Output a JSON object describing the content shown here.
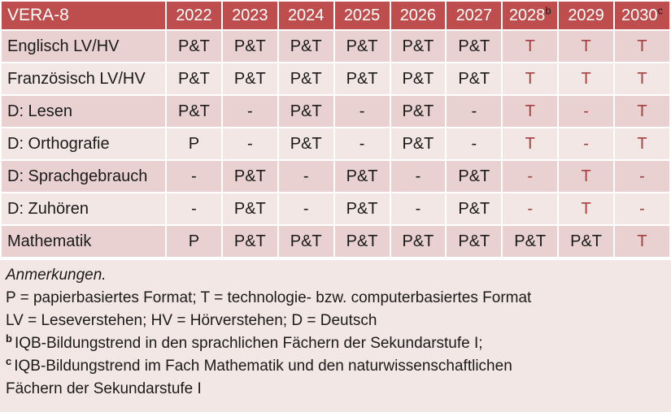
{
  "colors": {
    "header_bg": "#be4e4d",
    "header_text": "#ffffff",
    "row_dark_bg": "#e8d1d0",
    "row_light_bg": "#f3e7e5",
    "body_text": "#1a1a1a",
    "accent_text": "#a53e3c",
    "grid_gap": "#ffffff"
  },
  "table": {
    "corner_label": "VERA-8",
    "columns": [
      {
        "label": "2022"
      },
      {
        "label": "2023"
      },
      {
        "label": "2024"
      },
      {
        "label": "2025"
      },
      {
        "label": "2026"
      },
      {
        "label": "2027"
      },
      {
        "label": "2028",
        "sup": "b"
      },
      {
        "label": "2029"
      },
      {
        "label": "2030",
        "sup": "c"
      }
    ],
    "rows": [
      {
        "label": "Englisch LV/HV",
        "cells": [
          {
            "text": "P&T"
          },
          {
            "text": "P&T"
          },
          {
            "text": "P&T"
          },
          {
            "text": "P&T"
          },
          {
            "text": "P&T"
          },
          {
            "text": "P&T"
          },
          {
            "text": "T",
            "accent": true
          },
          {
            "text": "T",
            "accent": true
          },
          {
            "text": "T",
            "accent": true
          }
        ]
      },
      {
        "label": "Französisch LV/HV",
        "cells": [
          {
            "text": "P&T"
          },
          {
            "text": "P&T"
          },
          {
            "text": "P&T"
          },
          {
            "text": "P&T"
          },
          {
            "text": "P&T"
          },
          {
            "text": "P&T"
          },
          {
            "text": "T",
            "accent": true
          },
          {
            "text": "T",
            "accent": true
          },
          {
            "text": "T",
            "accent": true
          }
        ]
      },
      {
        "label": "D: Lesen",
        "cells": [
          {
            "text": "P&T"
          },
          {
            "text": "-"
          },
          {
            "text": "P&T"
          },
          {
            "text": "-"
          },
          {
            "text": "P&T"
          },
          {
            "text": "-"
          },
          {
            "text": "T",
            "accent": true
          },
          {
            "text": "-",
            "accent": true
          },
          {
            "text": "T",
            "accent": true
          }
        ]
      },
      {
        "label": "D: Orthografie",
        "cells": [
          {
            "text": "P"
          },
          {
            "text": "-"
          },
          {
            "text": "P&T"
          },
          {
            "text": "-"
          },
          {
            "text": "P&T"
          },
          {
            "text": "-"
          },
          {
            "text": "T",
            "accent": true
          },
          {
            "text": "-",
            "accent": true
          },
          {
            "text": "T",
            "accent": true
          }
        ]
      },
      {
        "label": "D: Sprachgebrauch",
        "cells": [
          {
            "text": "-"
          },
          {
            "text": "P&T"
          },
          {
            "text": "-"
          },
          {
            "text": "P&T"
          },
          {
            "text": "-"
          },
          {
            "text": "P&T"
          },
          {
            "text": "-",
            "accent": true
          },
          {
            "text": "T",
            "accent": true
          },
          {
            "text": "-",
            "accent": true
          }
        ]
      },
      {
        "label": "D: Zuhören",
        "cells": [
          {
            "text": "-"
          },
          {
            "text": "P&T"
          },
          {
            "text": "-"
          },
          {
            "text": "P&T"
          },
          {
            "text": "-"
          },
          {
            "text": "P&T"
          },
          {
            "text": "-",
            "accent": true
          },
          {
            "text": "T",
            "accent": true
          },
          {
            "text": "-",
            "accent": true
          }
        ]
      },
      {
        "label": "Mathematik",
        "cells": [
          {
            "text": "P"
          },
          {
            "text": "P&T"
          },
          {
            "text": "P&T"
          },
          {
            "text": "P&T"
          },
          {
            "text": "P&T"
          },
          {
            "text": "P&T"
          },
          {
            "text": "P&T"
          },
          {
            "text": "P&T"
          },
          {
            "text": "T",
            "accent": true
          }
        ]
      }
    ]
  },
  "notes": {
    "heading": "Anmerkungen.",
    "lines": [
      {
        "text": "P = papierbasiertes Format; T = technologie- bzw. computerbasiertes Format"
      },
      {
        "text": "LV = Leseverstehen; HV = Hörverstehen; D = Deutsch"
      },
      {
        "sup": "b",
        "text": "IQB-Bildungstrend in den sprachlichen Fächern der Sekundarstufe I;"
      },
      {
        "sup": "c",
        "text": "IQB-Bildungstrend im Fach Mathematik und den naturwissenschaftlichen"
      },
      {
        "text": "Fächern der Sekundarstufe I"
      }
    ]
  }
}
